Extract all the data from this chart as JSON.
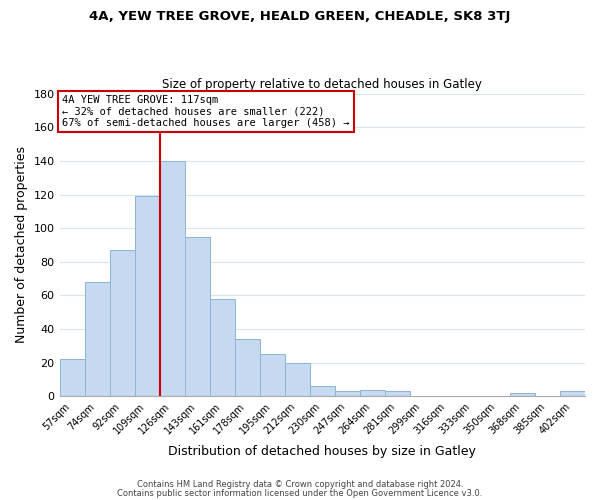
{
  "title": "4A, YEW TREE GROVE, HEALD GREEN, CHEADLE, SK8 3TJ",
  "subtitle": "Size of property relative to detached houses in Gatley",
  "xlabel": "Distribution of detached houses by size in Gatley",
  "ylabel": "Number of detached properties",
  "bar_color": "#c6d9f0",
  "bar_edge_color": "#8ab4d8",
  "categories": [
    "57sqm",
    "74sqm",
    "92sqm",
    "109sqm",
    "126sqm",
    "143sqm",
    "161sqm",
    "178sqm",
    "195sqm",
    "212sqm",
    "230sqm",
    "247sqm",
    "264sqm",
    "281sqm",
    "299sqm",
    "316sqm",
    "333sqm",
    "350sqm",
    "368sqm",
    "385sqm",
    "402sqm"
  ],
  "values": [
    22,
    68,
    87,
    119,
    140,
    95,
    58,
    34,
    25,
    20,
    6,
    3,
    4,
    3,
    0,
    0,
    0,
    0,
    2,
    0,
    3
  ],
  "ylim": [
    0,
    180
  ],
  "yticks": [
    0,
    20,
    40,
    60,
    80,
    100,
    120,
    140,
    160,
    180
  ],
  "vline_x": 3.5,
  "vline_color": "#cc0000",
  "annotation_title": "4A YEW TREE GROVE: 117sqm",
  "annotation_line1": "← 32% of detached houses are smaller (222)",
  "annotation_line2": "67% of semi-detached houses are larger (458) →",
  "footer_line1": "Contains HM Land Registry data © Crown copyright and database right 2024.",
  "footer_line2": "Contains public sector information licensed under the Open Government Licence v3.0.",
  "background_color": "#ffffff",
  "grid_color": "#d8e4f0"
}
